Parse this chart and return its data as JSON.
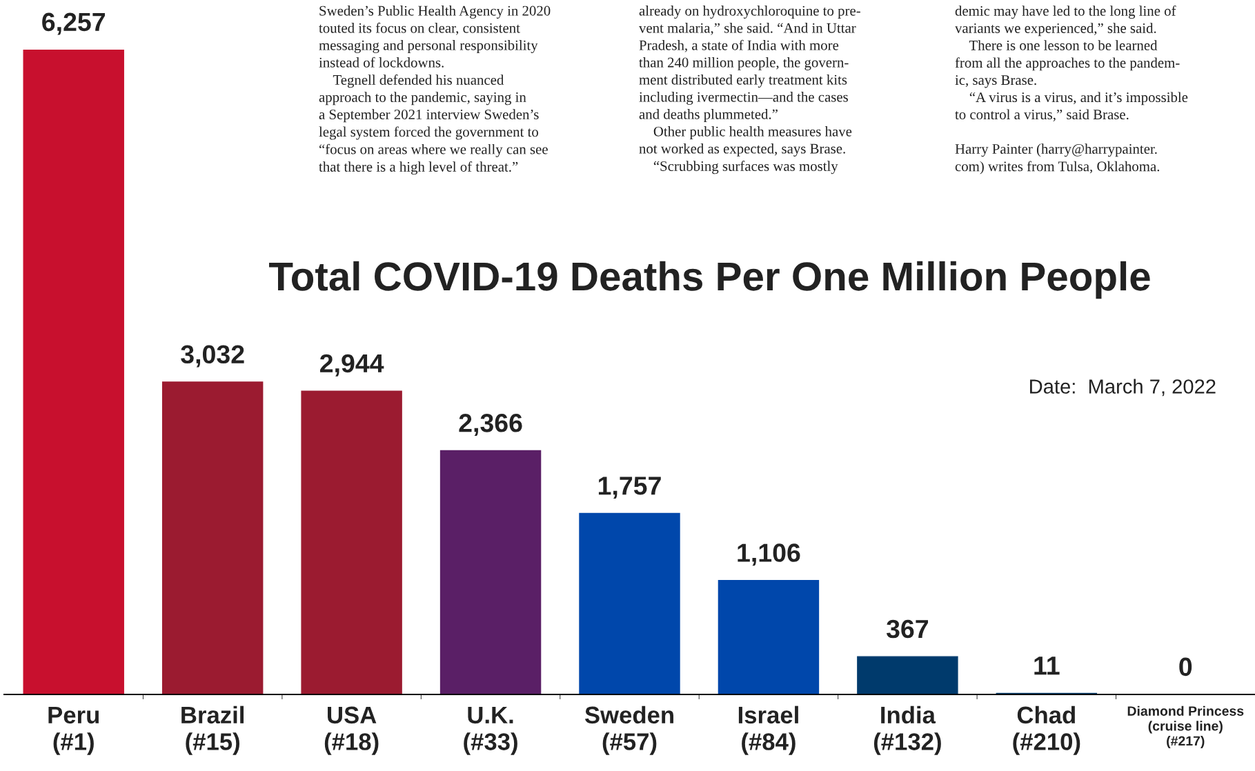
{
  "chart_data": {
    "type": "bar",
    "title": "Total COVID-19 Deaths Per One Million People",
    "categories": [
      "Peru\n(#1)",
      "Brazil\n(#15)",
      "USA\n(#18)",
      "U.K.\n(#33)",
      "Sweden\n(#57)",
      "Israel\n(#84)",
      "India\n(#132)",
      "Chad\n(#210)",
      "Diamond Princess\n(cruise line)\n(#217)"
    ],
    "values": [
      6257,
      3032,
      2944,
      2366,
      1757,
      1106,
      367,
      11,
      0
    ],
    "colors": [
      "#c8102e",
      "#9b1b30",
      "#9b1b30",
      "#5a1f66",
      "#0047ab",
      "#0047ab",
      "#003a6c",
      "#003a6c",
      "#003a6c"
    ],
    "value_labels": [
      "6,257",
      "3,032",
      "2,944",
      "2,366",
      "1,757",
      "1,106",
      "367",
      "11",
      "0"
    ],
    "ylim": [
      0,
      6257
    ],
    "annotations": [
      "Sweden’s Public Health Agency in 2020\ntouted its focus on clear, consistent\nmessaging and personal responsibility\ninstead of lockdowns.\n    Tegnell defended his nuanced\napproach to the pandemic, saying in\na September 2021 interview Sweden’s\nlegal system forced the government to\n“focus on areas where we really can see\nthat there is a high level of threat.”",
      "already on hydroxychloroquine to pre-\nvent malaria,” she said. “And in Uttar\nPradesh, a state of India with more\nthan 240 million people, the govern-\nment distributed early treatment kits\nincluding ivermectin—and the cases\nand deaths plummeted.”\n    Other public health measures have\nnot worked as expected, says Brase.\n    “Scrubbing surfaces was mostly",
      "demic may have led to the long line of\nvariants we experienced,” she said.\n    There is one lesson to be learned\nfrom all the approaches to the pandem-\nic, says Brase.\n    “A virus is a virus, and it’s impossible\nto control a virus,” said Brase.\n\nHarry Painter (harry@harrypainter.\ncom) writes from Tulsa, Oklahoma.",
      "Date:  March 7, 2022"
    ]
  }
}
